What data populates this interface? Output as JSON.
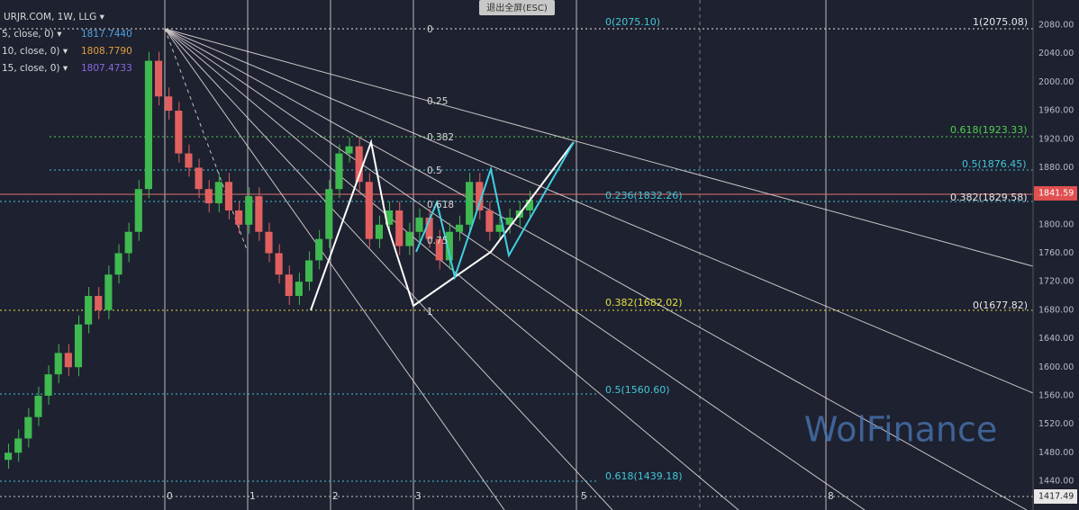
{
  "header": {
    "symbol": "URJR.COM, 1W, LLG ▾",
    "button": "退出全屏(ESC)"
  },
  "indicators": [
    {
      "label": "5, close, 0) ▾",
      "value": "1817.7440",
      "color": "#4fa3e0"
    },
    {
      "label": "10, close, 0) ▾",
      "value": "1808.7790",
      "color": "#e0a040"
    },
    {
      "label": "15, close, 0) ▾",
      "value": "1807.4733",
      "color": "#8a6ae0"
    }
  ],
  "fib_labels": [
    {
      "text": "0(2075.10)",
      "color": "#40c8d8"
    },
    {
      "text": "1(2075.08)",
      "color": "#e8e8e8"
    },
    {
      "text": "0.618(1923.33)",
      "color": "#50d050"
    },
    {
      "text": "0.5(1876.45)",
      "color": "#40c8d8"
    },
    {
      "text": "0.236(1832.26)",
      "color": "#40c8d8"
    },
    {
      "text": "0.382(1829.58)",
      "color": "#e8e8e8"
    },
    {
      "text": "0.382(1682.02)",
      "color": "#e0e040"
    },
    {
      "text": "0(1677.82)",
      "color": "#e8e8e8"
    },
    {
      "text": "0.5(1560.60)",
      "color": "#40c8d8"
    },
    {
      "text": "0.618(1439.18)",
      "color": "#40c8d8"
    }
  ],
  "fan_labels": [
    "0",
    "0.25",
    "0.382",
    "0.5",
    "0.618",
    "0.75",
    "1"
  ],
  "time_labels": [
    "0",
    "1",
    "2",
    "3",
    "5",
    "8"
  ],
  "price_ticks": [
    "2080.00",
    "2040.00",
    "2000.00",
    "1960.00",
    "1920.00",
    "1880.00",
    "1840.00",
    "1800.00",
    "1760.00",
    "1720.00",
    "1680.00",
    "1640.00",
    "1600.00",
    "1560.00",
    "1520.00",
    "1480.00",
    "1440.00"
  ],
  "price_tags": {
    "current": "1841.59",
    "low": "1417.49"
  },
  "watermark": "WolFinance",
  "closes": [
    1480,
    1500,
    1530,
    1560,
    1590,
    1620,
    1600,
    1660,
    1700,
    1680,
    1730,
    1760,
    1790,
    1850,
    2030,
    1980,
    1960,
    1900,
    1880,
    1850,
    1830,
    1860,
    1820,
    1800,
    1840,
    1790,
    1760,
    1730,
    1700,
    1720,
    1750,
    1780,
    1850,
    1900,
    1910,
    1860,
    1780,
    1800,
    1820,
    1770,
    1790,
    1810,
    1780,
    1750,
    1790,
    1800,
    1860,
    1820,
    1790,
    1800,
    1810,
    1820,
    1835
  ]
}
